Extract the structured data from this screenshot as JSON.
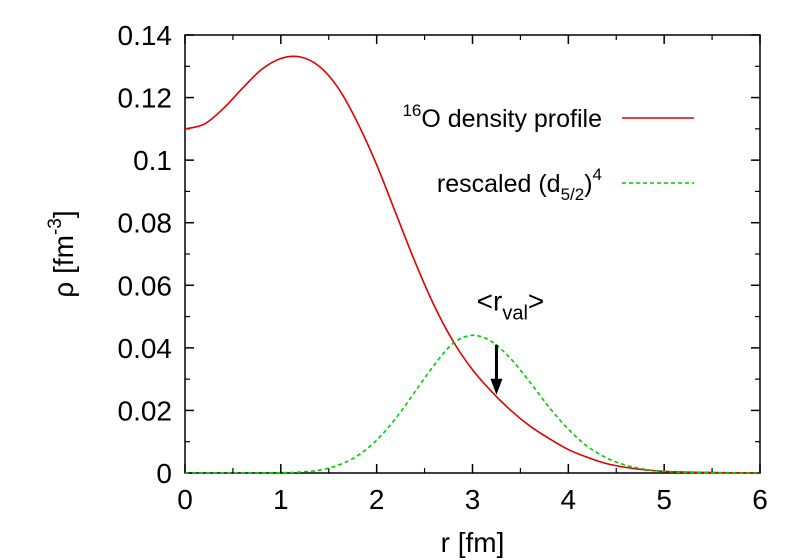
{
  "chart_data": {
    "type": "line",
    "xlabel": "r [fm]",
    "ylabel": {
      "base": "ρ [fm",
      "sup": "-3",
      "tail": "]"
    },
    "xlim": [
      0,
      6
    ],
    "ylim": [
      0,
      0.14
    ],
    "x_ticks": [
      "0",
      "1",
      "2",
      "3",
      "4",
      "5",
      "6"
    ],
    "y_ticks": [
      "0",
      "0.02",
      "0.04",
      "0.06",
      "0.08",
      "0.1",
      "0.12",
      "0.14"
    ],
    "grid": false,
    "legend_position": "top-right",
    "series": [
      {
        "name": {
          "pre": "",
          "sup": "16",
          "main": "O density profile",
          "sub": "",
          "post": "",
          "sup2": ""
        },
        "color": "#e00000",
        "dash": "solid",
        "x": [
          0,
          0.2,
          0.4,
          0.6,
          0.8,
          1.0,
          1.2,
          1.4,
          1.6,
          1.8,
          2.0,
          2.2,
          2.4,
          2.6,
          2.8,
          3.0,
          3.2,
          3.4,
          3.6,
          3.8,
          4.0,
          4.2,
          4.4,
          4.6,
          4.8,
          5.0,
          5.2,
          5.4,
          5.6,
          6.0
        ],
        "y": [
          0.11,
          0.1115,
          0.1165,
          0.123,
          0.129,
          0.1325,
          0.133,
          0.13,
          0.123,
          0.112,
          0.0985,
          0.083,
          0.0675,
          0.0535,
          0.042,
          0.033,
          0.026,
          0.02,
          0.015,
          0.011,
          0.0075,
          0.005,
          0.003,
          0.0018,
          0.001,
          0.0005,
          0.0003,
          0.0002,
          0.0001,
          0.0
        ]
      },
      {
        "name": {
          "pre": "rescaled (d",
          "sup": "",
          "main": "",
          "sub": "5/2",
          "post": ")",
          "sup2": "4"
        },
        "color": "#00cc00",
        "dash": "dashed",
        "x": [
          0,
          0.5,
          1.0,
          1.2,
          1.4,
          1.6,
          1.8,
          2.0,
          2.2,
          2.4,
          2.6,
          2.8,
          3.0,
          3.2,
          3.4,
          3.6,
          3.8,
          4.0,
          4.2,
          4.4,
          4.6,
          4.8,
          5.0,
          5.2,
          5.4,
          6.0
        ],
        "y": [
          0,
          0.0,
          0.0001,
          0.0003,
          0.0009,
          0.0025,
          0.0055,
          0.0105,
          0.0175,
          0.026,
          0.0345,
          0.0415,
          0.044,
          0.042,
          0.0365,
          0.029,
          0.021,
          0.014,
          0.0085,
          0.0048,
          0.0025,
          0.0012,
          0.0005,
          0.0002,
          0.0001,
          0.0
        ]
      }
    ],
    "annotation": {
      "text_main": "<r",
      "text_sub": "val",
      "text_tail": ">",
      "x": 3.25,
      "y_from": 0.041,
      "y_to": 0.025
    }
  }
}
